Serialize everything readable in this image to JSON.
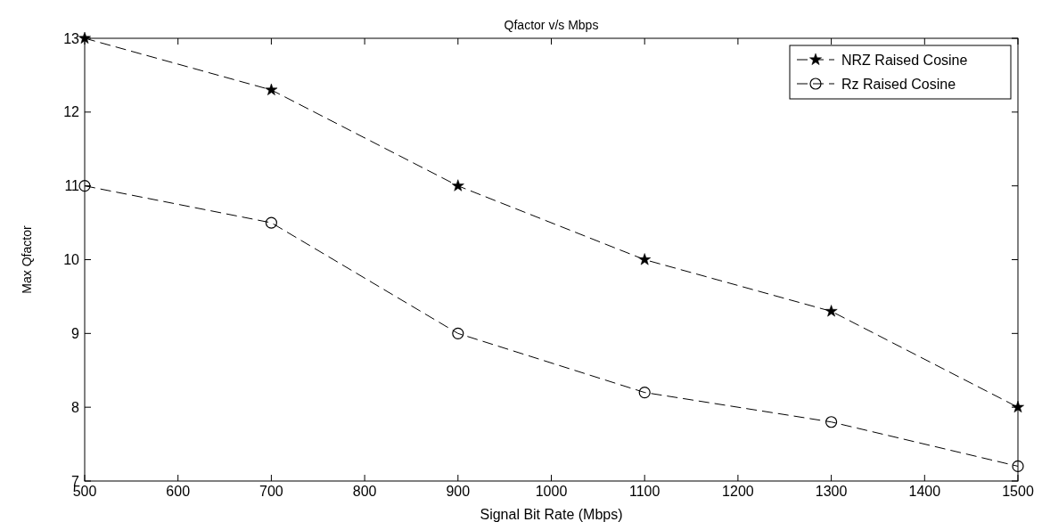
{
  "chart_data": {
    "type": "line",
    "title": "Qfactor v/s Mbps",
    "xlabel": "Signal Bit Rate (Mbps)",
    "ylabel": "Max Qfactor",
    "x": [
      500,
      700,
      900,
      1100,
      1300,
      1500
    ],
    "series": [
      {
        "name": "NRZ Raised Cosine",
        "color": "#000000",
        "marker": "star",
        "values": [
          13,
          12.3,
          11,
          10,
          9.3,
          8
        ]
      },
      {
        "name": "Rz Raised Cosine",
        "color": "#000000",
        "marker": "circle",
        "values": [
          11,
          10.5,
          9,
          8.2,
          7.8,
          7.2
        ]
      }
    ],
    "xlim": [
      500,
      1500
    ],
    "xticks": [
      500,
      600,
      700,
      800,
      900,
      1000,
      1100,
      1200,
      1300,
      1400,
      1500
    ],
    "ylim": [
      7,
      13
    ],
    "yticks": [
      7,
      8,
      9,
      10,
      11,
      12,
      13
    ],
    "line_style": "dashed",
    "legend": "top right",
    "grid": false
  }
}
